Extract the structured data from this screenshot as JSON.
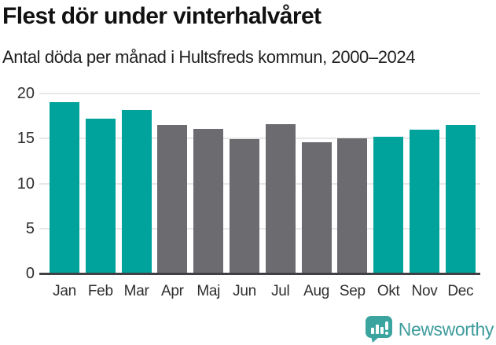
{
  "header": {
    "title": "Flest dör under vinterhalvåret",
    "subtitle": "Antal döda per månad i Hultsfreds kommun, 2000–2024"
  },
  "chart_data": {
    "type": "bar",
    "title": "Flest dör under vinterhalvåret",
    "subtitle": "Antal döda per månad i Hultsfreds kommun, 2000–2024",
    "categories": [
      "Jan",
      "Feb",
      "Mar",
      "Apr",
      "Maj",
      "Jun",
      "Jul",
      "Aug",
      "Sep",
      "Okt",
      "Nov",
      "Dec"
    ],
    "values": [
      19.0,
      17.2,
      18.2,
      16.5,
      16.1,
      14.9,
      16.6,
      14.6,
      15.0,
      15.2,
      16.0,
      16.5
    ],
    "bar_color_keys": [
      "winter",
      "winter",
      "winter",
      "summer",
      "summer",
      "summer",
      "summer",
      "summer",
      "summer",
      "winter",
      "winter",
      "winter"
    ],
    "colors": {
      "winter": "#00a29c",
      "summer": "#6c6b70"
    },
    "xlabel": "",
    "ylabel": "",
    "ylim": [
      0,
      20
    ],
    "yticks": [
      0,
      5,
      10,
      15,
      20
    ],
    "grid": "horizontal",
    "gridline_color": "#e9e7e8",
    "axis_line_color": "#414044",
    "legend": "none"
  },
  "footer": {
    "brand": "Newsworthy",
    "brand_color": "#3f9c9d",
    "logo_icon": "bar-chart-speech-bubble-icon",
    "logo_color": "#3ba49f"
  }
}
